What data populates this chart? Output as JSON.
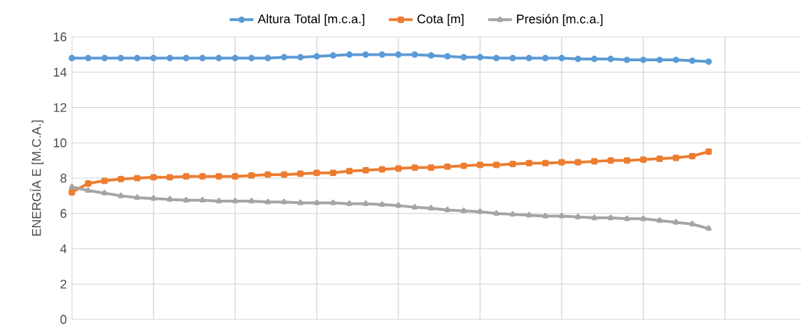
{
  "chart_data": {
    "type": "line",
    "ylabel": "ENERGÍA E [M.C.A.]",
    "categories": [
      null,
      null,
      null,
      null,
      null,
      null,
      null,
      null,
      null,
      null,
      null,
      null,
      null,
      null,
      null,
      null,
      null,
      null,
      null,
      null,
      null,
      null,
      null,
      null,
      null,
      null,
      null,
      null,
      null,
      null,
      null,
      null,
      null,
      null,
      null,
      null,
      null,
      null,
      null,
      null
    ],
    "ylim": [
      0,
      16
    ],
    "yticks": [
      0,
      2,
      4,
      6,
      8,
      10,
      12,
      14,
      16
    ],
    "grid": true,
    "legend": "top",
    "series": [
      {
        "name": "Altura Total [m.c.a.]",
        "color": "#5b9bd5",
        "marker": "circle",
        "values": [
          14.8,
          14.8,
          14.8,
          14.8,
          14.8,
          14.8,
          14.8,
          14.8,
          14.8,
          14.8,
          14.8,
          14.8,
          14.8,
          14.85,
          14.85,
          14.9,
          14.95,
          15.0,
          15.0,
          15.0,
          15.0,
          15.0,
          14.95,
          14.9,
          14.85,
          14.85,
          14.8,
          14.8,
          14.8,
          14.8,
          14.8,
          14.75,
          14.75,
          14.75,
          14.7,
          14.7,
          14.7,
          14.7,
          14.65,
          14.6
        ]
      },
      {
        "name": "Cota  [m]",
        "color": "#ed7d31",
        "marker": "square",
        "values": [
          7.2,
          7.7,
          7.85,
          7.95,
          8.0,
          8.05,
          8.05,
          8.1,
          8.1,
          8.1,
          8.1,
          8.15,
          8.2,
          8.2,
          8.25,
          8.3,
          8.3,
          8.4,
          8.45,
          8.5,
          8.55,
          8.6,
          8.6,
          8.65,
          8.7,
          8.75,
          8.75,
          8.8,
          8.85,
          8.85,
          8.9,
          8.9,
          8.95,
          9.0,
          9.0,
          9.05,
          9.1,
          9.15,
          9.25,
          9.5
        ]
      },
      {
        "name": "Presión [m.c.a.]",
        "color": "#a5a5a5",
        "marker": "triangle",
        "values": [
          7.5,
          7.3,
          7.15,
          7.0,
          6.9,
          6.85,
          6.8,
          6.75,
          6.75,
          6.7,
          6.7,
          6.7,
          6.65,
          6.65,
          6.6,
          6.6,
          6.6,
          6.55,
          6.55,
          6.5,
          6.45,
          6.35,
          6.3,
          6.2,
          6.15,
          6.1,
          6.0,
          5.95,
          5.9,
          5.85,
          5.85,
          5.8,
          5.75,
          5.75,
          5.7,
          5.7,
          5.6,
          5.5,
          5.4,
          5.15
        ]
      }
    ]
  }
}
